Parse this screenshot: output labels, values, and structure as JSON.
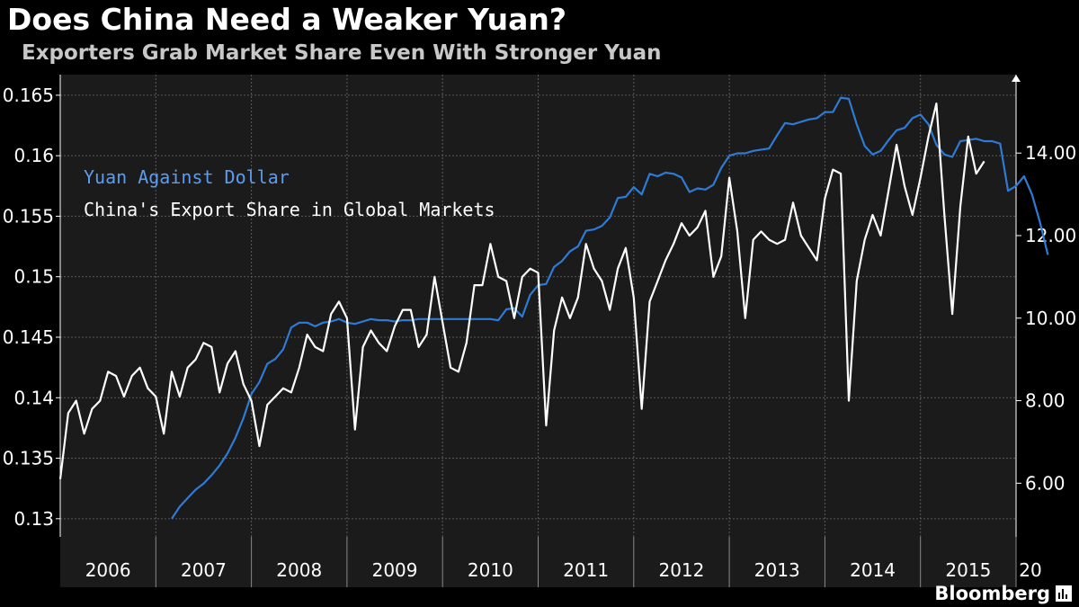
{
  "title": "Does China Need a Weaker Yuan?",
  "subtitle": "Exporters Grab Market Share Even With Stronger Yuan",
  "brand": "Bloomberg",
  "chart_data": {
    "type": "line",
    "x_tick_labels": [
      "2006",
      "2007",
      "2008",
      "2009",
      "2010",
      "2011",
      "2012",
      "2013",
      "2014",
      "2015",
      "20"
    ],
    "x_range": [
      "2006-01",
      "2016-01"
    ],
    "left_axis": {
      "ticks": [
        "0.13",
        "0.135",
        "0.14",
        "0.145",
        "0.15",
        "0.155",
        "0.16",
        "0.165"
      ],
      "ylim": [
        0.1285,
        0.1667
      ]
    },
    "right_axis": {
      "ticks": [
        "6.00",
        "8.00",
        "10.00",
        "12.00",
        "14.00"
      ],
      "ylim": [
        4.7,
        15.9
      ]
    },
    "grid": true,
    "legend_position": "top-left",
    "series": [
      {
        "name": "Yuan Against Dollar",
        "axis": "left",
        "color": "#2e7bd6",
        "start": "2007-03",
        "values": [
          0.13,
          0.131,
          0.1317,
          0.1324,
          0.1329,
          0.1336,
          0.1344,
          0.1354,
          0.1367,
          0.1383,
          0.1403,
          0.1413,
          0.1428,
          0.1432,
          0.144,
          0.1458,
          0.1462,
          0.1462,
          0.1459,
          0.1462,
          0.1463,
          0.1465,
          0.1462,
          0.1461,
          0.1463,
          0.1465,
          0.1464,
          0.1464,
          0.1463,
          0.1464,
          0.1464,
          0.1465,
          0.1465,
          0.1465,
          0.1465,
          0.1465,
          0.1465,
          0.1465,
          0.1465,
          0.1465,
          0.1465,
          0.1464,
          0.1473,
          0.1474,
          0.1467,
          0.1485,
          0.1493,
          0.1494,
          0.1508,
          0.1513,
          0.1521,
          0.1525,
          0.1538,
          0.1539,
          0.1542,
          0.1549,
          0.1565,
          0.1566,
          0.1574,
          0.1568,
          0.1585,
          0.1583,
          0.1586,
          0.1585,
          0.1582,
          0.157,
          0.1573,
          0.1572,
          0.1576,
          0.159,
          0.16,
          0.1602,
          0.1602,
          0.1604,
          0.1605,
          0.1606,
          0.1617,
          0.1627,
          0.1626,
          0.1628,
          0.163,
          0.1631,
          0.1636,
          0.1636,
          0.1648,
          0.1647,
          0.1626,
          0.1608,
          0.1601,
          0.1604,
          0.1613,
          0.1621,
          0.1623,
          0.1631,
          0.1634,
          0.1626,
          0.1609,
          0.1601,
          0.1599,
          0.1612,
          0.1613,
          0.1614,
          0.1612,
          0.1612,
          0.161,
          0.1571,
          0.1575,
          0.1583,
          0.1568,
          0.1545,
          0.1518
        ]
      },
      {
        "name": "China's Export Share in Global Markets",
        "axis": "right",
        "color": "#ffffff",
        "start": "2006-01",
        "values": [
          6.1,
          7.7,
          8.0,
          7.2,
          7.8,
          8.0,
          8.7,
          8.6,
          8.1,
          8.6,
          8.8,
          8.3,
          8.1,
          7.2,
          8.7,
          8.1,
          8.8,
          9.0,
          9.4,
          9.3,
          8.2,
          8.9,
          9.2,
          8.4,
          8.0,
          6.9,
          7.9,
          8.1,
          8.3,
          8.2,
          8.8,
          9.6,
          9.3,
          9.2,
          10.1,
          10.4,
          10.0,
          7.3,
          9.3,
          9.7,
          9.4,
          9.2,
          9.8,
          10.2,
          10.2,
          9.3,
          9.6,
          11.0,
          9.9,
          8.8,
          8.7,
          9.4,
          10.8,
          10.8,
          11.8,
          11.0,
          10.9,
          10.0,
          11.0,
          11.2,
          11.1,
          7.4,
          9.7,
          10.5,
          10.0,
          10.5,
          11.8,
          11.2,
          10.9,
          10.2,
          11.2,
          11.7,
          10.5,
          7.8,
          10.4,
          10.9,
          11.4,
          11.8,
          12.3,
          12.0,
          12.2,
          12.6,
          11.0,
          11.5,
          13.4,
          12.1,
          10.0,
          11.9,
          12.1,
          11.9,
          11.8,
          11.9,
          12.8,
          12.0,
          11.7,
          11.4,
          12.9,
          13.6,
          13.5,
          8.0,
          10.9,
          11.9,
          12.5,
          12.0,
          13.1,
          14.2,
          13.2,
          12.5,
          13.4,
          14.4,
          15.2,
          12.5,
          10.1,
          12.7,
          14.4,
          13.5,
          13.8
        ]
      }
    ]
  }
}
